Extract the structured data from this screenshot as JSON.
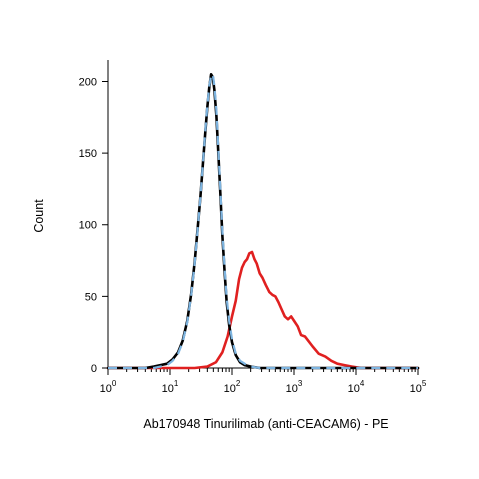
{
  "chart_data": {
    "type": "line",
    "title": "",
    "xlabel": "Ab170948 Tinurilimab (anti-CEACAM6) - PE",
    "ylabel": "Count",
    "x_scale": "log",
    "xlim": [
      1,
      100000
    ],
    "ylim": [
      0,
      215
    ],
    "grid": false,
    "legend": "none",
    "y_ticks": [
      0,
      50,
      100,
      150,
      200
    ],
    "x_ticks": [
      {
        "value": 1,
        "base": "10",
        "exp": "0"
      },
      {
        "value": 10,
        "base": "10",
        "exp": "1"
      },
      {
        "value": 100,
        "base": "10",
        "exp": "2"
      },
      {
        "value": 1000,
        "base": "10",
        "exp": "3"
      },
      {
        "value": 10000,
        "base": "10",
        "exp": "4"
      },
      {
        "value": 100000,
        "base": "10",
        "exp": "5"
      }
    ],
    "series": [
      {
        "color": "#e02020",
        "dash": "solid",
        "points": [
          [
            1,
            0
          ],
          [
            10,
            0
          ],
          [
            25,
            0
          ],
          [
            40,
            1
          ],
          [
            55,
            4
          ],
          [
            70,
            11
          ],
          [
            85,
            22
          ],
          [
            100,
            36
          ],
          [
            115,
            47
          ],
          [
            130,
            62
          ],
          [
            145,
            70
          ],
          [
            160,
            74
          ],
          [
            175,
            76
          ],
          [
            190,
            80
          ],
          [
            210,
            81
          ],
          [
            230,
            76
          ],
          [
            250,
            73
          ],
          [
            280,
            66
          ],
          [
            310,
            63
          ],
          [
            350,
            58
          ],
          [
            400,
            53
          ],
          [
            450,
            51
          ],
          [
            500,
            50
          ],
          [
            560,
            46
          ],
          [
            630,
            41
          ],
          [
            710,
            36
          ],
          [
            800,
            34
          ],
          [
            900,
            36
          ],
          [
            1000,
            33
          ],
          [
            1150,
            29
          ],
          [
            1300,
            23
          ],
          [
            1500,
            22
          ],
          [
            1700,
            19
          ],
          [
            2000,
            15
          ],
          [
            2500,
            10
          ],
          [
            3200,
            8
          ],
          [
            4000,
            5
          ],
          [
            5000,
            3
          ],
          [
            6500,
            2
          ],
          [
            8500,
            1
          ],
          [
            12000,
            0
          ],
          [
            100000,
            0
          ]
        ]
      },
      {
        "color": "#000000",
        "dash": "solid",
        "points": [
          [
            1,
            0
          ],
          [
            4,
            0
          ],
          [
            5.5,
            1
          ],
          [
            7,
            2
          ],
          [
            9,
            3
          ],
          [
            11,
            6
          ],
          [
            13.5,
            11
          ],
          [
            16,
            19
          ],
          [
            19,
            33
          ],
          [
            22,
            52
          ],
          [
            25,
            74
          ],
          [
            28,
            98
          ],
          [
            31,
            120
          ],
          [
            34,
            143
          ],
          [
            37,
            164
          ],
          [
            40,
            182
          ],
          [
            43,
            196
          ],
          [
            46,
            205
          ],
          [
            49,
            203
          ],
          [
            52,
            194
          ],
          [
            56,
            176
          ],
          [
            60,
            151
          ],
          [
            65,
            121
          ],
          [
            70,
            92
          ],
          [
            76,
            67
          ],
          [
            82,
            46
          ],
          [
            90,
            30
          ],
          [
            100,
            18
          ],
          [
            115,
            9
          ],
          [
            135,
            4
          ],
          [
            160,
            2
          ],
          [
            200,
            1
          ],
          [
            280,
            0
          ],
          [
            100000,
            0
          ]
        ]
      },
      {
        "color": "#7db4e0",
        "dash": "dashed",
        "points": [
          [
            1,
            0
          ],
          [
            4,
            0
          ],
          [
            5.5,
            0
          ],
          [
            7,
            1
          ],
          [
            9,
            2
          ],
          [
            11,
            5
          ],
          [
            13.5,
            10
          ],
          [
            16,
            18
          ],
          [
            19,
            32
          ],
          [
            22,
            51
          ],
          [
            25,
            73
          ],
          [
            28,
            97
          ],
          [
            31,
            120
          ],
          [
            34,
            143
          ],
          [
            37,
            165
          ],
          [
            40,
            183
          ],
          [
            43,
            197
          ],
          [
            46,
            204
          ],
          [
            49,
            205
          ],
          [
            52,
            197
          ],
          [
            56,
            180
          ],
          [
            60,
            154
          ],
          [
            65,
            124
          ],
          [
            70,
            95
          ],
          [
            76,
            70
          ],
          [
            82,
            49
          ],
          [
            90,
            33
          ],
          [
            100,
            20
          ],
          [
            115,
            10
          ],
          [
            135,
            5
          ],
          [
            160,
            3
          ],
          [
            200,
            1
          ],
          [
            280,
            0
          ],
          [
            100000,
            0
          ]
        ]
      }
    ]
  }
}
